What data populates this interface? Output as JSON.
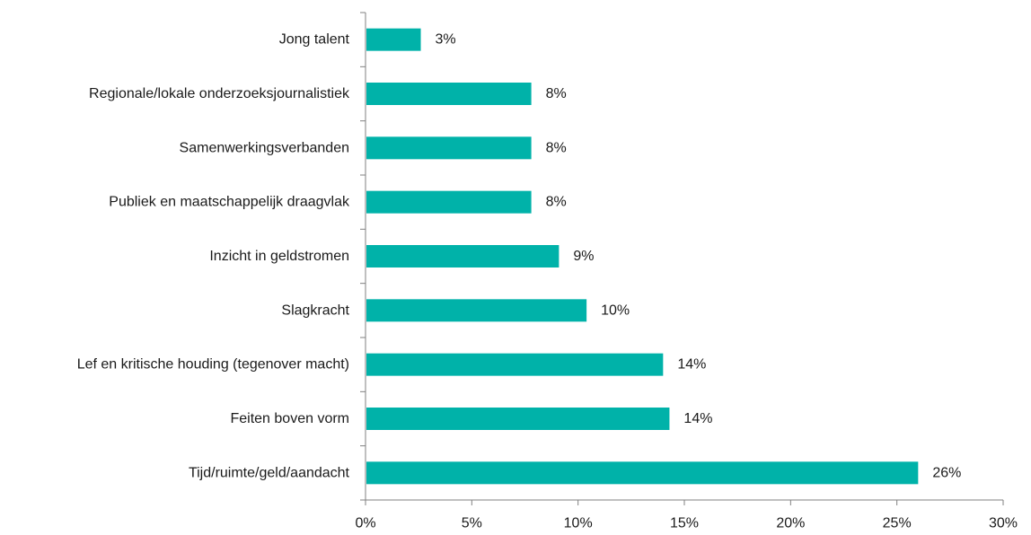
{
  "chart_data": {
    "type": "bar",
    "orientation": "horizontal",
    "categories": [
      "Jong talent",
      "Regionale/lokale onderzoeksjournalistiek",
      "Samenwerkingsverbanden",
      "Publiek en maatschappelijk draagvlak",
      "Inzicht in geldstromen",
      "Slagkracht",
      "Lef en kritische houding (tegenover macht)",
      "Feiten boven vorm",
      "Tijd/ruimte/geld/aandacht"
    ],
    "values": [
      2.6,
      7.8,
      7.8,
      7.8,
      9.1,
      10.4,
      14.0,
      14.3,
      26.0
    ],
    "value_labels": [
      "3%",
      "8%",
      "8%",
      "8%",
      "9%",
      "10%",
      "14%",
      "14%",
      "26%"
    ],
    "xlim": [
      0,
      30
    ],
    "xticks": [
      0,
      5,
      10,
      15,
      20,
      25,
      30
    ],
    "xtick_labels": [
      "0%",
      "5%",
      "10%",
      "15%",
      "20%",
      "25%",
      "30%"
    ],
    "bar_color": "#00b2a9",
    "grid": false,
    "title": "",
    "xlabel": "",
    "ylabel": ""
  }
}
